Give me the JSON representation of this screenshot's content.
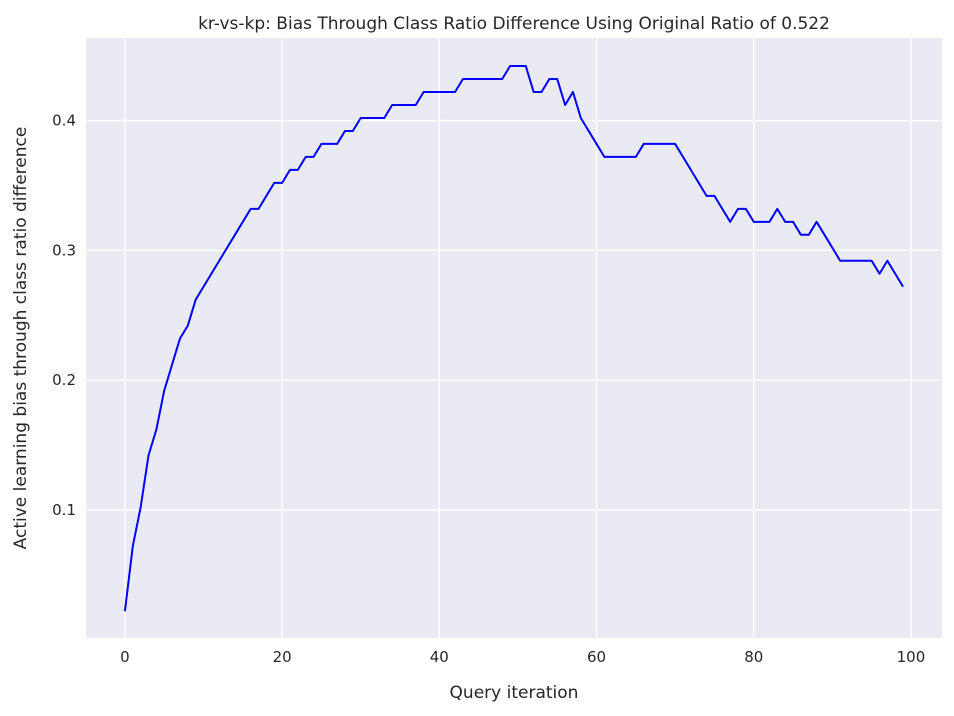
{
  "chart_data": {
    "type": "line",
    "title": "kr-vs-kp: Bias Through Class Ratio Difference Using Original Ratio of 0.522",
    "xlabel": "Query iteration",
    "ylabel": "Active learning bias through class ratio difference",
    "xlim": [
      -4.95,
      103.95
    ],
    "ylim": [
      0.0014,
      0.4636
    ],
    "xticks": [
      0,
      20,
      40,
      60,
      80,
      100
    ],
    "yticks": [
      0.1,
      0.2,
      0.3,
      0.4
    ],
    "xtick_labels": [
      "0",
      "20",
      "40",
      "60",
      "80",
      "100"
    ],
    "ytick_labels": [
      "0.1",
      "0.2",
      "0.3",
      "0.4"
    ],
    "grid": true,
    "background": "#eaeaf2",
    "grid_color": "#ffffff",
    "series": [
      {
        "color": "#0000ff",
        "x": [
          0,
          1,
          2,
          3,
          4,
          5,
          6,
          7,
          8,
          9,
          10,
          11,
          12,
          13,
          14,
          15,
          16,
          17,
          18,
          19,
          20,
          21,
          22,
          23,
          24,
          25,
          26,
          27,
          28,
          29,
          30,
          31,
          32,
          33,
          34,
          35,
          36,
          37,
          38,
          39,
          40,
          41,
          42,
          43,
          44,
          45,
          46,
          47,
          48,
          49,
          50,
          51,
          52,
          53,
          54,
          55,
          56,
          57,
          58,
          59,
          60,
          61,
          62,
          63,
          64,
          65,
          66,
          67,
          68,
          69,
          70,
          71,
          72,
          73,
          74,
          75,
          76,
          77,
          78,
          79,
          80,
          81,
          82,
          83,
          84,
          85,
          86,
          87,
          88,
          89,
          90,
          91,
          92,
          93,
          94,
          95,
          96,
          97,
          98,
          99
        ],
        "y": [
          0.022,
          0.072,
          0.102,
          0.142,
          0.162,
          0.192,
          0.212,
          0.232,
          0.242,
          0.262,
          0.272,
          0.282,
          0.292,
          0.302,
          0.312,
          0.322,
          0.332,
          0.332,
          0.342,
          0.352,
          0.352,
          0.362,
          0.362,
          0.372,
          0.372,
          0.382,
          0.382,
          0.382,
          0.392,
          0.392,
          0.402,
          0.402,
          0.402,
          0.402,
          0.412,
          0.412,
          0.412,
          0.412,
          0.422,
          0.422,
          0.422,
          0.422,
          0.422,
          0.432,
          0.432,
          0.432,
          0.432,
          0.432,
          0.432,
          0.442,
          0.442,
          0.442,
          0.422,
          0.422,
          0.432,
          0.432,
          0.412,
          0.422,
          0.402,
          0.392,
          0.382,
          0.372,
          0.372,
          0.372,
          0.372,
          0.372,
          0.382,
          0.382,
          0.382,
          0.382,
          0.382,
          0.372,
          0.362,
          0.352,
          0.342,
          0.342,
          0.332,
          0.322,
          0.332,
          0.332,
          0.322,
          0.322,
          0.322,
          0.332,
          0.322,
          0.322,
          0.312,
          0.312,
          0.322,
          0.312,
          0.302,
          0.292,
          0.292,
          0.292,
          0.292,
          0.292,
          0.282,
          0.292,
          0.282,
          0.272
        ]
      }
    ]
  }
}
